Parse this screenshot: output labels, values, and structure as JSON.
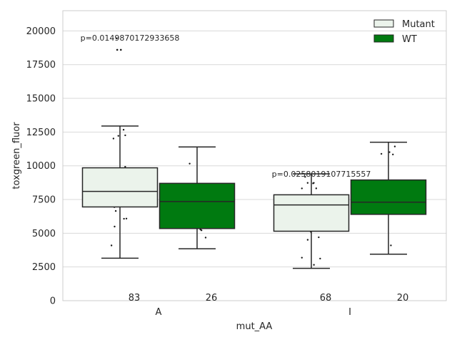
{
  "chart_data": {
    "type": "box",
    "xlabel": "mut_AA",
    "ylabel": "toxgreen_fluor",
    "ylim": [
      0,
      21500
    ],
    "yticks": [
      0,
      2500,
      5000,
      7500,
      10000,
      12500,
      15000,
      17500,
      20000
    ],
    "ytick_labels": [
      "0",
      "2500",
      "5000",
      "7500",
      "10000",
      "12500",
      "15000",
      "17500",
      "20000"
    ],
    "categories": [
      "A",
      "I"
    ],
    "grid": true,
    "legend_position": "top-right",
    "series": [
      {
        "name": "Mutant",
        "color": "#ebf3eb",
        "boxes": [
          {
            "category": "A",
            "whisker_low": 3150,
            "q1": 6950,
            "median": 8100,
            "q3": 9850,
            "whisker_high": 12950,
            "outliers": [
              18600,
              18600,
              19450
            ],
            "count": 83
          },
          {
            "category": "I",
            "whisker_low": 2400,
            "q1": 5150,
            "median": 7100,
            "q3": 7850,
            "whisker_high": 9400,
            "outliers": [],
            "count": 68
          }
        ]
      },
      {
        "name": "WT",
        "color": "#007a10",
        "boxes": [
          {
            "category": "A",
            "whisker_low": 3850,
            "q1": 5350,
            "median": 7350,
            "q3": 8700,
            "whisker_high": 11400,
            "outliers": [],
            "count": 26
          },
          {
            "category": "I",
            "whisker_low": 3450,
            "q1": 6400,
            "median": 7300,
            "q3": 8950,
            "whisker_high": 11750,
            "outliers": [],
            "count": 20
          }
        ]
      }
    ],
    "annotations": [
      {
        "category": "A",
        "text": "p=0.0149870172933658",
        "y": 19500
      },
      {
        "category": "I",
        "text": "p=0.0258019107715557",
        "y": 9400
      }
    ]
  }
}
